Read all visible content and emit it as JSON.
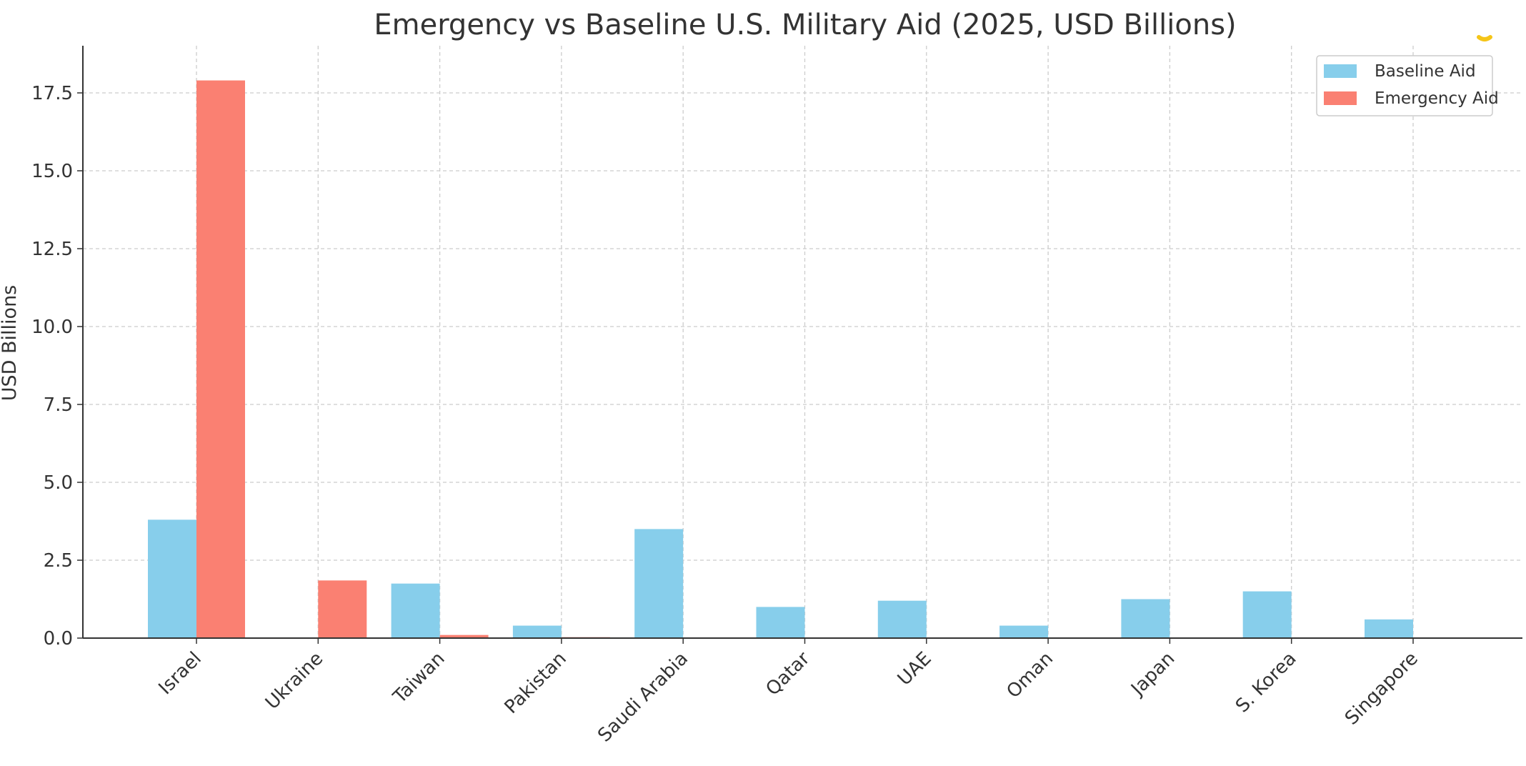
{
  "chart_data": {
    "type": "bar",
    "title": "Emergency vs Baseline U.S. Military Aid (2025, USD Billions)",
    "xlabel": "",
    "ylabel": "USD Billions",
    "ylim": [
      0,
      18.8
    ],
    "yticks": [
      "0.0",
      "2.5",
      "5.0",
      "7.5",
      "10.0",
      "12.5",
      "15.0",
      "17.5"
    ],
    "grid": true,
    "legend_position": "top-right",
    "categories": [
      "Israel",
      "Ukraine",
      "Taiwan",
      "Pakistan",
      "Saudi Arabia",
      "Qatar",
      "UAE",
      "Oman",
      "Japan",
      "S. Korea",
      "Singapore"
    ],
    "series": [
      {
        "name": "Baseline Aid",
        "color": "#87CEEB",
        "values": [
          3.8,
          0,
          1.75,
          0.4,
          3.5,
          1.0,
          1.2,
          0.4,
          1.25,
          1.5,
          0.6
        ]
      },
      {
        "name": "Emergency Aid",
        "color": "#FA8072",
        "values": [
          17.9,
          1.85,
          0.1,
          0.03,
          0,
          0,
          0,
          0,
          0,
          0,
          0
        ]
      }
    ]
  }
}
